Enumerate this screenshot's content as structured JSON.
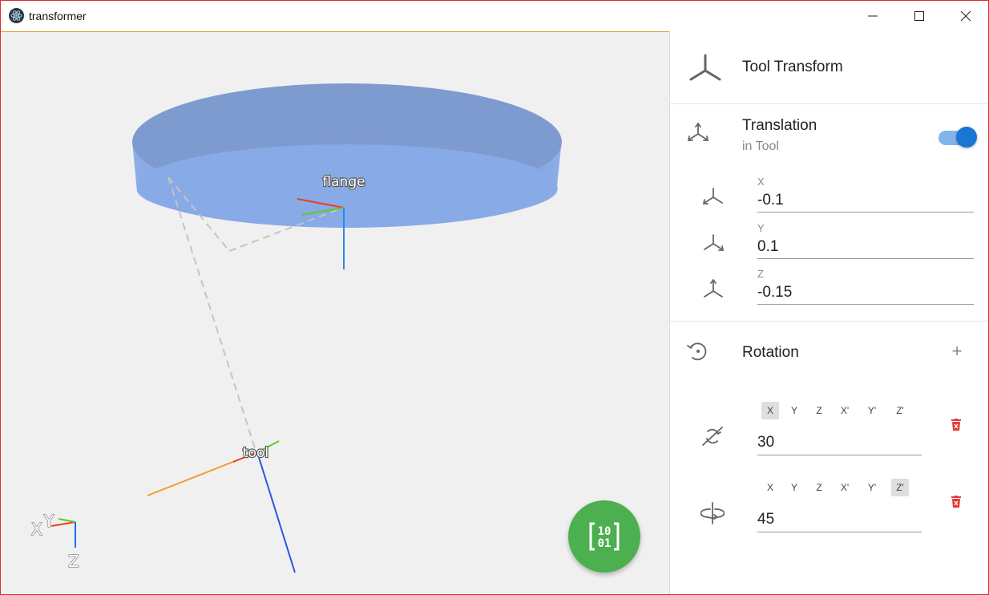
{
  "window": {
    "title": "transformer"
  },
  "viewport": {
    "frames": {
      "flange": "flange",
      "tool": "tool"
    },
    "axes_gizmo": {
      "x": "X",
      "y": "Y",
      "z": "Z"
    },
    "colors": {
      "x_axis": "#e8401e",
      "y_axis": "#5ecb2a",
      "z_axis": "#1e6fe8",
      "flange_disc": "#88aae6"
    }
  },
  "fab": {
    "icon": "binary-matrix-icon"
  },
  "panel": {
    "header": {
      "title": "Tool Transform",
      "icon": "axes-tripod-icon"
    },
    "translation": {
      "title": "Translation",
      "subtitle": "in Tool",
      "toggle_on": true,
      "fields": [
        {
          "label": "X",
          "value": "-0.1",
          "icon": "axis-x-icon"
        },
        {
          "label": "Y",
          "value": "0.1",
          "icon": "axis-y-icon"
        },
        {
          "label": "Z",
          "value": "-0.15",
          "icon": "axis-z-icon"
        }
      ]
    },
    "rotation": {
      "title": "Rotation",
      "add_label": "+",
      "axis_options": [
        "X",
        "Y",
        "Z",
        "X'",
        "Y'",
        "Z'"
      ],
      "items": [
        {
          "selected_axis": "X",
          "value": "30",
          "icon": "rotate-x-icon"
        },
        {
          "selected_axis": "Z'",
          "value": "45",
          "icon": "rotate-z-icon"
        }
      ]
    }
  }
}
